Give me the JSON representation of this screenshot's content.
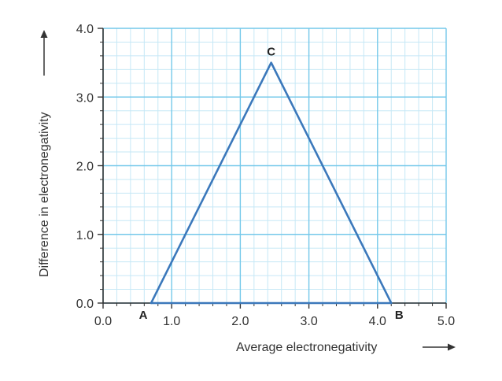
{
  "chart_data": {
    "type": "line",
    "title": "",
    "xlabel": "Average electronegativity",
    "ylabel": "Difference in electronegativity",
    "xlim": [
      0.0,
      5.0
    ],
    "ylim": [
      0.0,
      4.0
    ],
    "x_ticks": [
      "0.0",
      "1.0",
      "2.0",
      "3.0",
      "4.0",
      "5.0"
    ],
    "y_ticks": [
      "0.0",
      "1.0",
      "2.0",
      "3.0",
      "4.0"
    ],
    "grid": true,
    "series": [
      {
        "points": [
          {
            "x": 0.7,
            "y": 0.0
          },
          {
            "x": 2.45,
            "y": 3.5
          },
          {
            "x": 4.2,
            "y": 0.0
          },
          {
            "x": 0.7,
            "y": 0.0
          }
        ]
      }
    ],
    "annotations": [
      {
        "label": "A",
        "x": 0.7,
        "y": 0.0
      },
      {
        "label": "B",
        "x": 4.2,
        "y": 0.0
      },
      {
        "label": "C",
        "x": 2.45,
        "y": 3.5
      }
    ],
    "colors": {
      "grid_major": "#74c8ea",
      "grid_minor": "#c6e8f6",
      "line": "#3b78bb",
      "axis": "#333333"
    }
  }
}
